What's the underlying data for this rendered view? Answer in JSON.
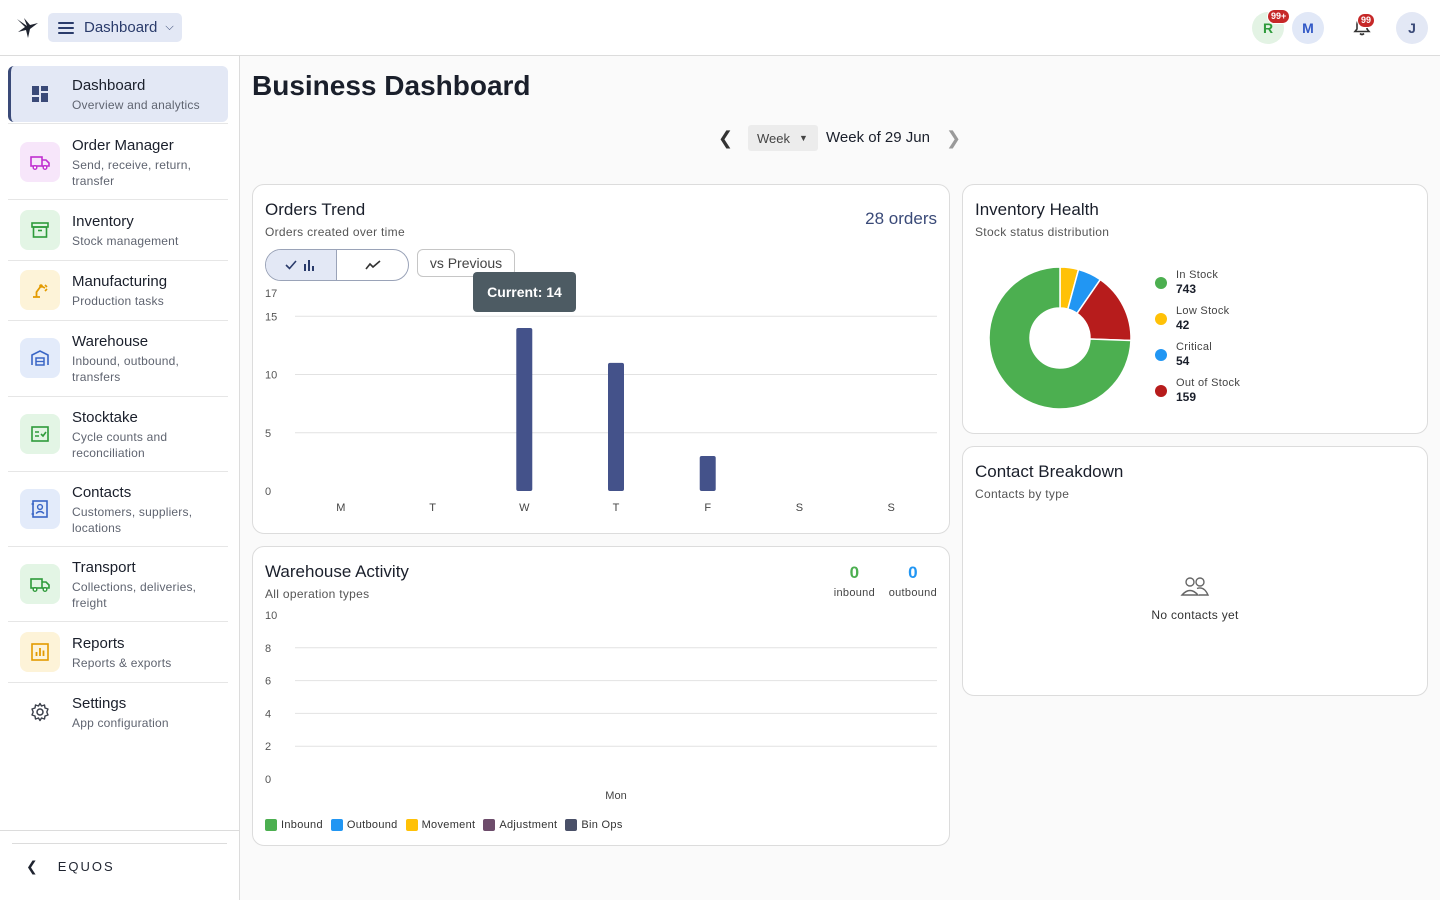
{
  "topbar": {
    "menu_label": "Dashboard",
    "avatars": [
      {
        "letter": "R",
        "badge": "99+"
      },
      {
        "letter": "M"
      },
      {
        "letter": "J"
      }
    ],
    "notification_badge": "99"
  },
  "sidebar": {
    "items": [
      {
        "title": "Dashboard",
        "subtitle": "Overview and analytics",
        "icon": "dashboard-icon",
        "color": "#3a4a78",
        "bg": "#e3e8f5",
        "active": true
      },
      {
        "title": "Order Manager",
        "subtitle": "Send, receive, return, transfer",
        "icon": "truck-icon",
        "color": "#c02fd0",
        "bg": "#f7e6fa"
      },
      {
        "title": "Inventory",
        "subtitle": "Stock management",
        "icon": "archive-icon",
        "color": "#2e9b3b",
        "bg": "#e3f5e5"
      },
      {
        "title": "Manufacturing",
        "subtitle": "Production tasks",
        "icon": "robot-arm-icon",
        "color": "#e39a00",
        "bg": "#fdf3d8"
      },
      {
        "title": "Warehouse",
        "subtitle": "Inbound, outbound, transfers",
        "icon": "warehouse-icon",
        "color": "#3a66c6",
        "bg": "#e3ebfa"
      },
      {
        "title": "Stocktake",
        "subtitle": "Cycle counts and reconciliation",
        "icon": "checklist-icon",
        "color": "#2e9b3b",
        "bg": "#e3f5e5"
      },
      {
        "title": "Contacts",
        "subtitle": "Customers, suppliers, locations",
        "icon": "contact-card-icon",
        "color": "#3a66c6",
        "bg": "#e3ebfa"
      },
      {
        "title": "Transport",
        "subtitle": "Collections, deliveries, freight",
        "icon": "truck-icon",
        "color": "#2e9b3b",
        "bg": "#e3f5e5"
      },
      {
        "title": "Reports",
        "subtitle": "Reports & exports",
        "icon": "bar-report-icon",
        "color": "#e39a00",
        "bg": "#fdf3d8"
      },
      {
        "title": "Settings",
        "subtitle": "App configuration",
        "icon": "gear-icon",
        "color": "#3a3f4a",
        "bg": "#ffffff"
      }
    ],
    "footer_label": "EQUOS"
  },
  "main": {
    "title": "Business Dashboard",
    "week_selector": {
      "mode": "Week",
      "label": "Week of 29 Jun"
    }
  },
  "orders_trend": {
    "title": "Orders Trend",
    "subtitle": "Orders created over time",
    "total": "28 orders",
    "compare_label": "vs Previous",
    "tooltip": "Current: 14"
  },
  "warehouse_activity": {
    "title": "Warehouse Activity",
    "subtitle": "All operation types",
    "inbound_value": "0",
    "inbound_label": "inbound",
    "outbound_value": "0",
    "outbound_label": "outbound",
    "legend": [
      {
        "name": "Inbound",
        "color": "#4caf50"
      },
      {
        "name": "Outbound",
        "color": "#2196f3"
      },
      {
        "name": "Movement",
        "color": "#ffc107"
      },
      {
        "name": "Adjustment",
        "color": "#6d4c6b"
      },
      {
        "name": "Bin Ops",
        "color": "#4a5068"
      }
    ]
  },
  "inventory_health": {
    "title": "Inventory Health",
    "subtitle": "Stock status distribution"
  },
  "contact_breakdown": {
    "title": "Contact Breakdown",
    "subtitle": "Contacts by type",
    "empty_message": "No contacts yet"
  },
  "chart_data": [
    {
      "id": "orders_trend",
      "type": "bar",
      "categories": [
        "M",
        "T",
        "W",
        "T",
        "F",
        "S",
        "S"
      ],
      "values": [
        0,
        0,
        14,
        11,
        3,
        0,
        0
      ],
      "ylim": [
        0,
        17
      ],
      "yticks": [
        0,
        5,
        10,
        15,
        17
      ],
      "grid": true,
      "color": "#44528a"
    },
    {
      "id": "warehouse_activity",
      "type": "bar",
      "categories": [
        "Mon"
      ],
      "series": [
        {
          "name": "Inbound",
          "values": [
            0
          ]
        },
        {
          "name": "Outbound",
          "values": [
            0
          ]
        },
        {
          "name": "Movement",
          "values": [
            0
          ]
        },
        {
          "name": "Adjustment",
          "values": [
            0
          ]
        },
        {
          "name": "Bin Ops",
          "values": [
            0
          ]
        }
      ],
      "ylim": [
        0,
        10
      ],
      "yticks": [
        0,
        2,
        4,
        6,
        8,
        10
      ],
      "grid": true,
      "legend": "bottom-left"
    },
    {
      "id": "inventory_health",
      "type": "pie",
      "labels": [
        "In Stock",
        "Low Stock",
        "Critical",
        "Out of Stock"
      ],
      "values": [
        743,
        42,
        54,
        159
      ],
      "colors": [
        "#4caf50",
        "#ffc107",
        "#2196f3",
        "#b71c1c"
      ],
      "legend": "right"
    }
  ]
}
